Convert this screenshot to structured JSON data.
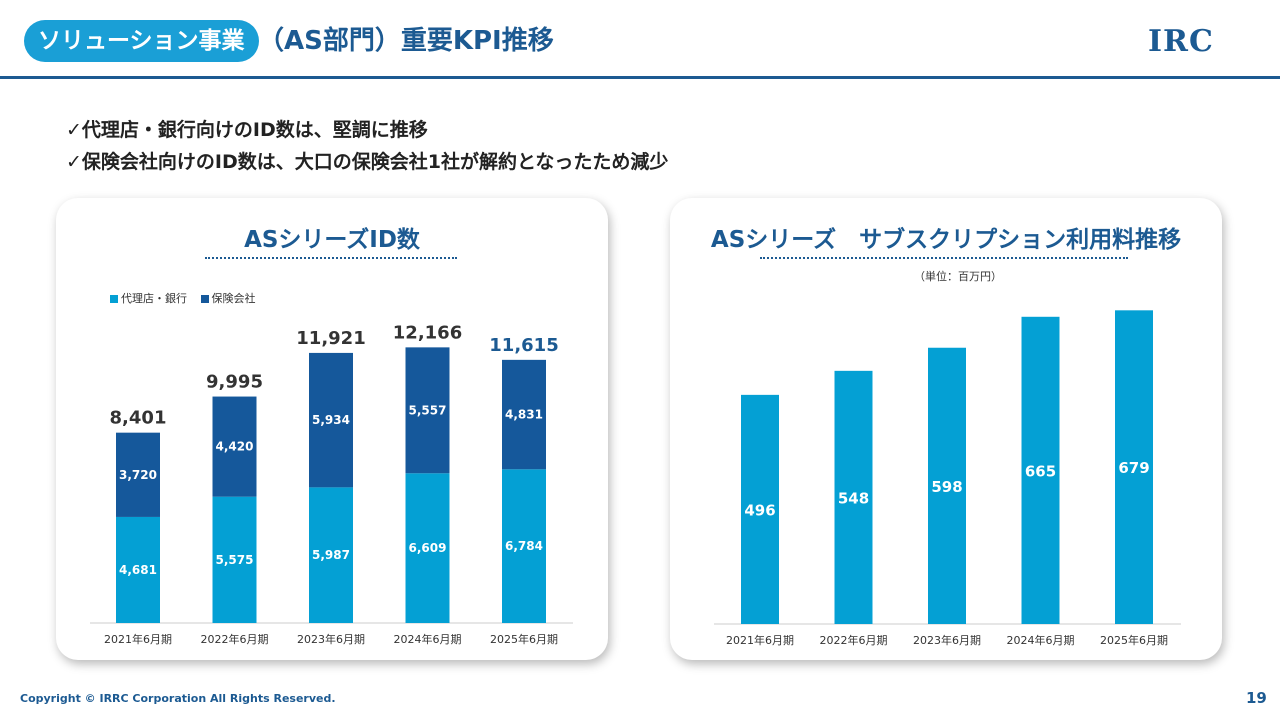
{
  "header": {
    "pill_text": "ソリューション事業",
    "title_rest": "（AS部門）重要KPI推移",
    "logo_text": "IRC"
  },
  "bullets": [
    "✓代理店・銀行向けのID数は、堅調に推移",
    "✓保険会社向けのID数は、大口の保険会社1社が解約となったため減少"
  ],
  "colors": {
    "primary": "#1c5a92",
    "agency": "#04a0d4",
    "insurer": "#15589b",
    "pill": "#1a9fd6"
  },
  "chart_data": [
    {
      "type": "bar",
      "stacked": true,
      "title": "ASシリーズID数",
      "categories": [
        "2021年6月期",
        "2022年6月期",
        "2023年6月期",
        "2024年6月期",
        "2025年6月期"
      ],
      "series": [
        {
          "name": "代理店・銀行",
          "values": [
            4681,
            5575,
            5987,
            6609,
            6784
          ]
        },
        {
          "name": "保険会社",
          "values": [
            3720,
            4420,
            5934,
            5557,
            4831
          ]
        }
      ],
      "totals": [
        8401,
        9995,
        11921,
        12166,
        11615
      ],
      "ylim": [
        0,
        12800
      ],
      "legend": "top-left"
    },
    {
      "type": "bar",
      "title": "ASシリーズ　サブスクリプション利用料推移",
      "unit": "（単位：百万円）",
      "categories": [
        "2021年6月期",
        "2022年6月期",
        "2023年6月期",
        "2024年6月期",
        "2025年6月期"
      ],
      "values": [
        496,
        548,
        598,
        665,
        679
      ],
      "ylim": [
        0,
        710
      ]
    }
  ],
  "footer": {
    "copyright": "Copyright © IRRC Corporation All Rights Reserved.",
    "page": "19"
  }
}
